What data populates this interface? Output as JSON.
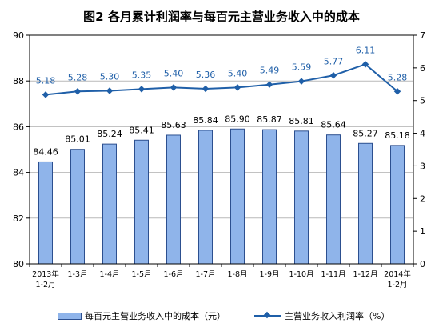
{
  "chart_data": {
    "type": "bar",
    "title": "图2  各月累计利润率与每百元主营业务收入中的成本",
    "categories": [
      "2013年\n1-2月",
      "1-3月",
      "1-4月",
      "1-5月",
      "1-6月",
      "1-7月",
      "1-8月",
      "1-9月",
      "1-10月",
      "1-11月",
      "1-12月",
      "2014年\n1-2月"
    ],
    "left_axis": {
      "ylim": [
        80,
        90
      ],
      "ticks": [
        80,
        82,
        84,
        86,
        88,
        90
      ]
    },
    "right_axis": {
      "ylim": [
        0,
        7
      ],
      "ticks": [
        0,
        1,
        2,
        3,
        4,
        5,
        6,
        7
      ]
    },
    "grid": "horizontal",
    "legend": "bottom",
    "series": [
      {
        "name": "每百元主营业务收入中的成本（元）",
        "type": "bar",
        "axis": "left",
        "color": "#8fb4ea",
        "values": [
          84.46,
          85.01,
          85.24,
          85.41,
          85.63,
          85.84,
          85.9,
          85.87,
          85.81,
          85.64,
          85.27,
          85.18
        ]
      },
      {
        "name": "主营业务收入利润率（%）",
        "type": "line",
        "axis": "right",
        "color": "#1f5fa8",
        "values": [
          5.18,
          5.28,
          5.3,
          5.35,
          5.4,
          5.36,
          5.4,
          5.49,
          5.59,
          5.77,
          6.11,
          5.28
        ]
      }
    ]
  }
}
